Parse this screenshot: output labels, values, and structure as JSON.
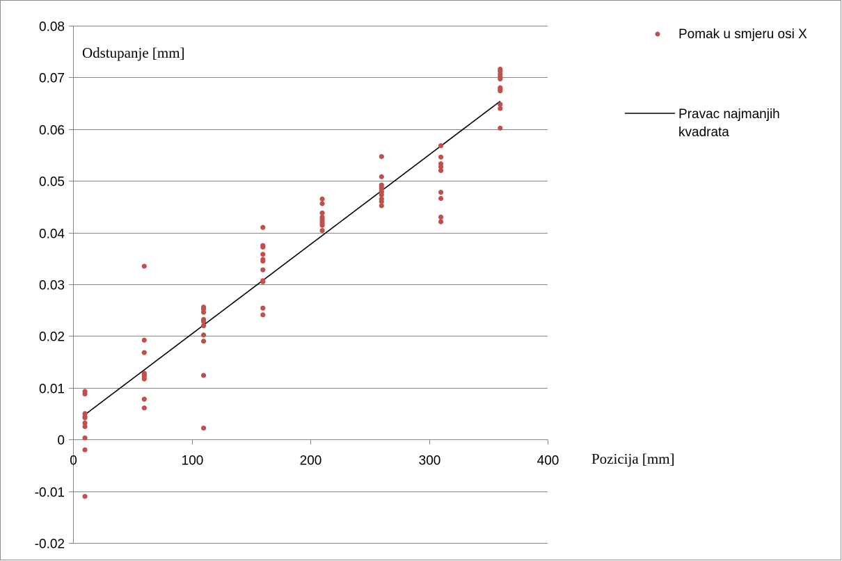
{
  "chart_data": {
    "type": "scatter",
    "title": "",
    "xlabel": "Pozicija [mm]",
    "ylabel": "Odstupanje [mm]",
    "xlim": [
      0,
      400
    ],
    "ylim": [
      -0.02,
      0.08
    ],
    "x_ticks": [
      0,
      100,
      200,
      300,
      400
    ],
    "x_tick_labels": [
      "0",
      "100",
      "200",
      "300",
      "400"
    ],
    "y_ticks": [
      -0.02,
      -0.01,
      0,
      0.01,
      0.02,
      0.03,
      0.04,
      0.05,
      0.06,
      0.07,
      0.08
    ],
    "y_tick_labels": [
      "-0.02",
      "-0.01",
      "0",
      "0.01",
      "0.02",
      "0.03",
      "0.04",
      "0.05",
      "0.06",
      "0.07",
      "0.08"
    ],
    "grid": "horizontal",
    "legend_position": "right",
    "series": [
      {
        "name": "Pomak u smjeru osi X",
        "kind": "scatter",
        "color": "#C0504D",
        "points": [
          [
            10,
            0.0093
          ],
          [
            10,
            0.0088
          ],
          [
            10,
            0.005
          ],
          [
            10,
            0.0044
          ],
          [
            10,
            0.0042
          ],
          [
            10,
            0.0032
          ],
          [
            10,
            0.0025
          ],
          [
            10,
            0.0003
          ],
          [
            10,
            -0.002
          ],
          [
            10,
            -0.011
          ],
          [
            60,
            0.0335
          ],
          [
            60,
            0.0192
          ],
          [
            60,
            0.0168
          ],
          [
            60,
            0.0128
          ],
          [
            60,
            0.0125
          ],
          [
            60,
            0.0122
          ],
          [
            60,
            0.0117
          ],
          [
            60,
            0.0078
          ],
          [
            60,
            0.0061
          ],
          [
            110,
            0.0256
          ],
          [
            110,
            0.0252
          ],
          [
            110,
            0.0246
          ],
          [
            110,
            0.0232
          ],
          [
            110,
            0.0228
          ],
          [
            110,
            0.022
          ],
          [
            110,
            0.0202
          ],
          [
            110,
            0.019
          ],
          [
            110,
            0.0124
          ],
          [
            110,
            0.0022
          ],
          [
            160,
            0.041
          ],
          [
            160,
            0.0375
          ],
          [
            160,
            0.0372
          ],
          [
            160,
            0.0358
          ],
          [
            160,
            0.0348
          ],
          [
            160,
            0.0345
          ],
          [
            160,
            0.0328
          ],
          [
            160,
            0.0307
          ],
          [
            160,
            0.0305
          ],
          [
            160,
            0.0254
          ],
          [
            160,
            0.0241
          ],
          [
            210,
            0.0465
          ],
          [
            210,
            0.0456
          ],
          [
            210,
            0.0438
          ],
          [
            210,
            0.043
          ],
          [
            210,
            0.0427
          ],
          [
            210,
            0.0422
          ],
          [
            210,
            0.0418
          ],
          [
            210,
            0.0414
          ],
          [
            210,
            0.0404
          ],
          [
            260,
            0.0547
          ],
          [
            260,
            0.0508
          ],
          [
            260,
            0.0492
          ],
          [
            260,
            0.0488
          ],
          [
            260,
            0.0485
          ],
          [
            260,
            0.048
          ],
          [
            260,
            0.0478
          ],
          [
            260,
            0.0473
          ],
          [
            260,
            0.0465
          ],
          [
            260,
            0.046
          ],
          [
            260,
            0.0452
          ],
          [
            310,
            0.0568
          ],
          [
            310,
            0.0546
          ],
          [
            310,
            0.0533
          ],
          [
            310,
            0.0527
          ],
          [
            310,
            0.052
          ],
          [
            310,
            0.0478
          ],
          [
            310,
            0.0466
          ],
          [
            310,
            0.043
          ],
          [
            310,
            0.0421
          ],
          [
            360,
            0.0716
          ],
          [
            360,
            0.0712
          ],
          [
            360,
            0.0706
          ],
          [
            360,
            0.0701
          ],
          [
            360,
            0.0697
          ],
          [
            360,
            0.068
          ],
          [
            360,
            0.0677
          ],
          [
            360,
            0.0674
          ],
          [
            360,
            0.0648
          ],
          [
            360,
            0.064
          ],
          [
            360,
            0.0602
          ]
        ]
      },
      {
        "name": "Pravac najmanjih kvadrata",
        "name_lines": [
          "Pravac najmanjih",
          "kvadrata"
        ],
        "kind": "line",
        "color": "#000000",
        "x": [
          10,
          360
        ],
        "y": [
          0.0048,
          0.0654
        ]
      }
    ]
  }
}
